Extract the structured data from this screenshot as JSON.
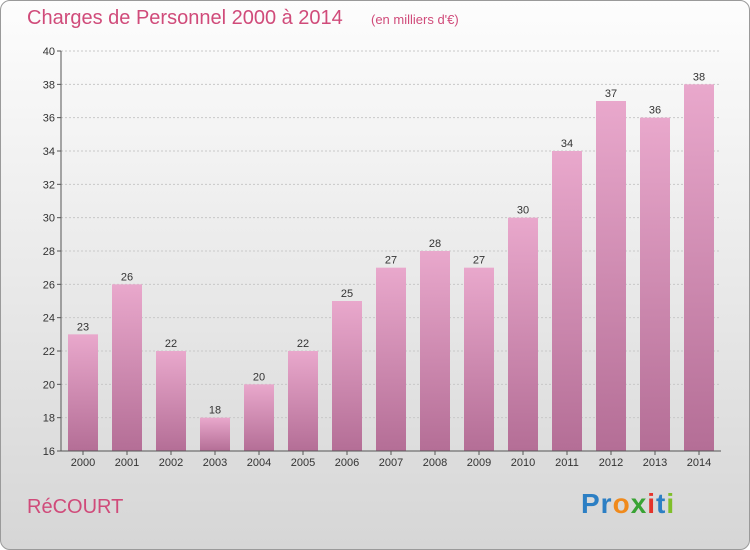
{
  "header": {
    "title": "Charges de Personnel 2000 à 2014",
    "subtitle": "(en milliers d'€)"
  },
  "footer": {
    "commune": "RéCOURT",
    "logo": [
      "Pr",
      "o",
      "x",
      "i",
      "t",
      "i"
    ]
  },
  "colors": {
    "bar_top": "#e9a8cc",
    "bar_bottom": "#b46e96",
    "title": "#d04b7a"
  },
  "chart_data": {
    "type": "bar",
    "title": "Charges de Personnel 2000 à 2014",
    "subtitle": "(en milliers d'€)",
    "categories": [
      "2000",
      "2001",
      "2002",
      "2003",
      "2004",
      "2005",
      "2006",
      "2007",
      "2008",
      "2009",
      "2010",
      "2011",
      "2012",
      "2013",
      "2014"
    ],
    "values": [
      23,
      26,
      22,
      18,
      20,
      22,
      25,
      27,
      28,
      27,
      30,
      34,
      37,
      36,
      38
    ],
    "ylim": [
      16,
      40
    ],
    "yticks": [
      16,
      18,
      20,
      22,
      24,
      26,
      28,
      30,
      32,
      34,
      36,
      38,
      40
    ],
    "grid": true,
    "data_labels": true,
    "xlabel": "",
    "ylabel": ""
  }
}
